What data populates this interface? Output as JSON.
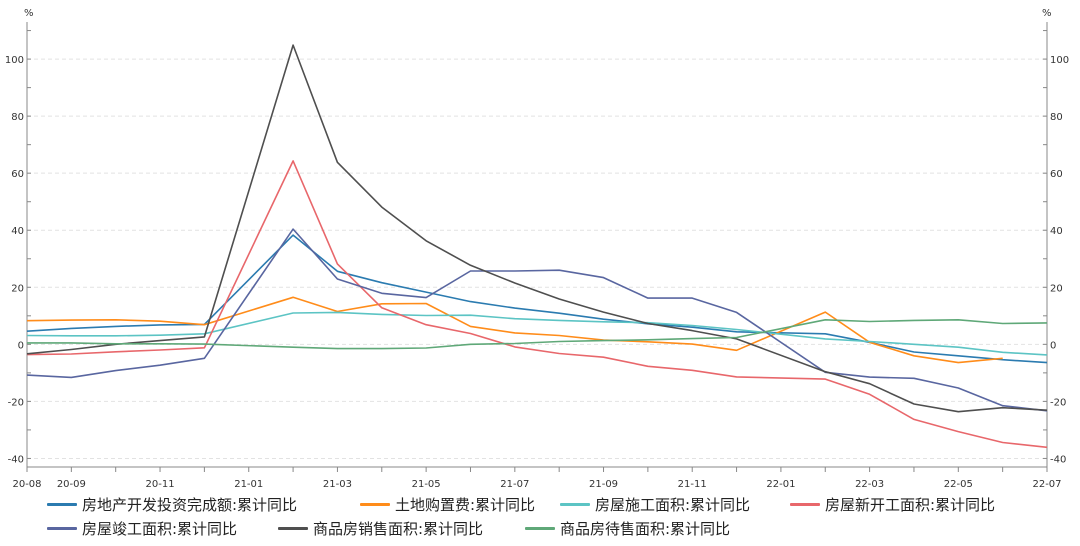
{
  "chart_data": {
    "type": "line",
    "title": "",
    "ylabel_left": "%",
    "ylabel_right": "%",
    "ylim": [
      -43,
      113
    ],
    "yticks": [
      -40,
      -20,
      0,
      20,
      40,
      60,
      80,
      100
    ],
    "grid": true,
    "legend_position": "bottom",
    "x": [
      "20-08",
      "20-09",
      "20-10",
      "20-11",
      "20-12",
      "21-01",
      "21-02",
      "21-03",
      "21-04",
      "21-05",
      "21-06",
      "21-07",
      "21-08",
      "21-09",
      "21-10",
      "21-11",
      "21-12",
      "22-01",
      "22-02",
      "22-03",
      "22-04",
      "22-05",
      "22-06",
      "22-07"
    ],
    "xtick_labels": [
      "20-08",
      "20-09",
      "20-11",
      "21-01",
      "21-03",
      "21-05",
      "21-07",
      "21-09",
      "21-11",
      "22-01",
      "22-03",
      "22-05",
      "22-07"
    ],
    "series": [
      {
        "name": "房地产开发投资完成额:累计同比",
        "color": "#2b7bb0",
        "values": [
          4.6,
          5.6,
          6.3,
          6.8,
          7.0,
          null,
          38.3,
          25.6,
          21.6,
          18.3,
          15.0,
          12.7,
          10.9,
          8.8,
          7.2,
          6.0,
          4.4,
          null,
          3.7,
          0.7,
          -2.7,
          -4.0,
          -5.4,
          -6.4
        ]
      },
      {
        "name": "土地购置费:累计同比",
        "color": "#ff8c1a",
        "values": [
          8.3,
          8.5,
          8.6,
          8.1,
          6.9,
          null,
          16.5,
          11.5,
          14.2,
          14.3,
          6.3,
          4.0,
          3.1,
          1.5,
          0.9,
          0.1,
          -2.1,
          null,
          11.3,
          0.7,
          -4.0,
          -6.4,
          -4.9,
          null
        ]
      },
      {
        "name": "房屋施工面积:累计同比",
        "color": "#5cc4c4",
        "values": [
          3.1,
          3.0,
          3.0,
          3.2,
          3.7,
          null,
          11.0,
          11.2,
          10.5,
          10.1,
          10.2,
          9.0,
          8.4,
          7.9,
          7.6,
          6.6,
          5.2,
          null,
          1.9,
          1.0,
          0.0,
          -1.0,
          -2.8,
          -3.7
        ]
      },
      {
        "name": "房屋新开工面积:累计同比",
        "color": "#e8676b",
        "values": [
          -3.6,
          -3.4,
          -2.6,
          -2.0,
          -1.2,
          null,
          64.3,
          28.2,
          12.8,
          6.9,
          3.8,
          -0.9,
          -3.2,
          -4.5,
          -7.7,
          -9.1,
          -11.4,
          null,
          -12.2,
          -17.5,
          -26.3,
          -30.6,
          -34.4,
          -36.1
        ]
      },
      {
        "name": "房屋竣工面积:累计同比",
        "color": "#5966a0",
        "values": [
          -10.8,
          -11.6,
          -9.2,
          -7.3,
          -4.9,
          null,
          40.4,
          22.9,
          17.9,
          16.4,
          25.7,
          25.7,
          26.0,
          23.4,
          16.2,
          16.2,
          11.2,
          null,
          -9.8,
          -11.5,
          -11.9,
          -15.3,
          -21.5,
          -23.3
        ]
      },
      {
        "name": "商品房销售面积:累计同比",
        "color": "#4f4f4f",
        "values": [
          -3.3,
          -1.8,
          0.0,
          1.3,
          2.6,
          null,
          104.9,
          63.8,
          48.1,
          36.3,
          27.7,
          21.5,
          15.9,
          11.3,
          7.3,
          4.8,
          1.9,
          null,
          -9.6,
          -13.8,
          -20.9,
          -23.6,
          -22.2,
          -23.1
        ]
      },
      {
        "name": "商品房待售面积:累计同比",
        "color": "#5fa878",
        "values": [
          0.5,
          0.5,
          0.2,
          0.2,
          0.1,
          null,
          -1.0,
          -1.5,
          -1.5,
          -1.3,
          0.0,
          0.3,
          1.0,
          1.3,
          1.6,
          2.0,
          2.4,
          null,
          8.6,
          8.0,
          8.4,
          8.6,
          7.3,
          7.5
        ]
      }
    ]
  }
}
